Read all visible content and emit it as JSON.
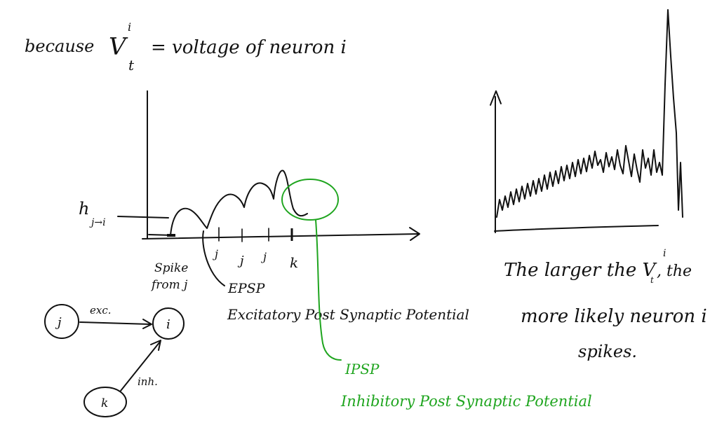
{
  "header": {
    "because": "because",
    "v": "V",
    "sup": "i",
    "sub": "t",
    "rest": "= voltage of neuron i"
  },
  "left_plot": {
    "y_label_main": "h",
    "y_label_sub": "j→i",
    "ticks": [
      "j",
      "j",
      "j",
      "k"
    ],
    "spike_text": [
      "Spike",
      "from j"
    ],
    "epsp_short": "EPSP",
    "epsp_full": "Excitatory Post Synaptic Potential",
    "ipsp_short": "IPSP",
    "ipsp_full": "Inhibitory Post Synaptic Potential",
    "colors": {
      "ink": "#111111",
      "inhibitory": "#1fa51f"
    }
  },
  "network": {
    "nodes": [
      "j",
      "i",
      "k"
    ],
    "edge_labels": [
      "exc.",
      "inh."
    ]
  },
  "right_plot": {
    "caption_lines": [
      "The larger the V",
      "more likely neuron i",
      "spikes."
    ],
    "caption_sup": "i",
    "caption_sub": "t",
    "caption_tail": ", the"
  }
}
